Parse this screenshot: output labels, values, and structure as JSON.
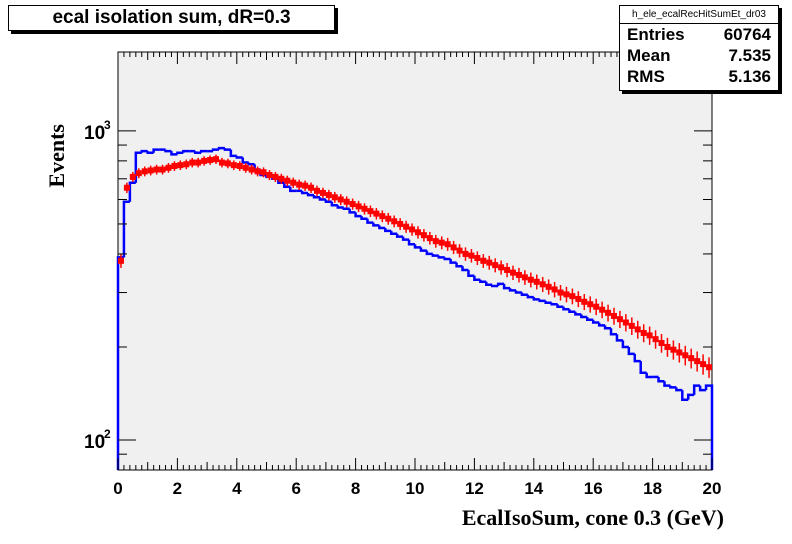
{
  "title": "ecal isolation sum, dR=0.3",
  "stats": {
    "name": "h_ele_ecalRecHitSumEt_dr03",
    "rows": [
      {
        "label": "Entries",
        "value": "60764"
      },
      {
        "label": "Mean",
        "value": "7.535"
      },
      {
        "label": "RMS",
        "value": "5.136"
      }
    ]
  },
  "chart_data": {
    "type": "line",
    "title": "ecal isolation sum, dR=0.3",
    "xlabel": "EcalIsoSum, cone 0.3 (GeV)",
    "ylabel": "Events",
    "xlim": [
      0,
      20
    ],
    "ylim": [
      80,
      1800
    ],
    "yscale": "log",
    "xticks": [
      "0",
      "2",
      "4",
      "6",
      "8",
      "10",
      "12",
      "14",
      "16",
      "18",
      "20"
    ],
    "yticks": [
      {
        "value": 100,
        "label": "10",
        "exp": "2"
      },
      {
        "value": 1000,
        "label": "10",
        "exp": "3"
      }
    ],
    "grid": false,
    "colors": {
      "frame_bg": "#f0f0f0",
      "histogram": "#0000ff",
      "markers": "#ff0000"
    },
    "bin_width": 0.2,
    "series": [
      {
        "style": "histogram",
        "values": [
          390,
          590,
          680,
          850,
          860,
          850,
          870,
          870,
          860,
          840,
          850,
          860,
          860,
          850,
          860,
          860,
          870,
          880,
          870,
          830,
          820,
          790,
          780,
          750,
          720,
          710,
          700,
          680,
          660,
          640,
          640,
          630,
          620,
          610,
          600,
          590,
          575,
          565,
          560,
          545,
          530,
          520,
          505,
          495,
          485,
          475,
          465,
          455,
          445,
          430,
          420,
          410,
          400,
          395,
          390,
          385,
          375,
          365,
          355,
          340,
          330,
          325,
          318,
          315,
          320,
          310,
          305,
          300,
          295,
          290,
          285,
          282,
          278,
          275,
          270,
          265,
          260,
          255,
          250,
          245,
          240,
          235,
          230,
          220,
          210,
          200,
          190,
          180,
          165,
          160,
          160,
          155,
          150,
          148,
          145,
          135,
          140,
          150,
          145,
          150
        ]
      },
      {
        "style": "markers",
        "values": [
          380,
          655,
          710,
          730,
          740,
          745,
          750,
          750,
          760,
          770,
          775,
          780,
          790,
          790,
          800,
          805,
          810,
          790,
          785,
          775,
          770,
          760,
          750,
          740,
          735,
          720,
          710,
          700,
          690,
          680,
          670,
          665,
          655,
          640,
          630,
          620,
          610,
          600,
          590,
          580,
          570,
          560,
          550,
          540,
          530,
          520,
          510,
          500,
          490,
          480,
          470,
          460,
          450,
          440,
          435,
          430,
          420,
          410,
          400,
          395,
          388,
          380,
          375,
          368,
          362,
          355,
          348,
          342,
          336,
          330,
          325,
          319,
          313,
          307,
          300,
          296,
          292,
          286,
          280,
          275,
          270,
          264,
          258,
          252,
          246,
          240,
          234,
          228,
          222,
          218,
          212,
          206,
          200,
          196,
          192,
          188,
          184,
          180,
          176,
          172
        ]
      }
    ]
  }
}
